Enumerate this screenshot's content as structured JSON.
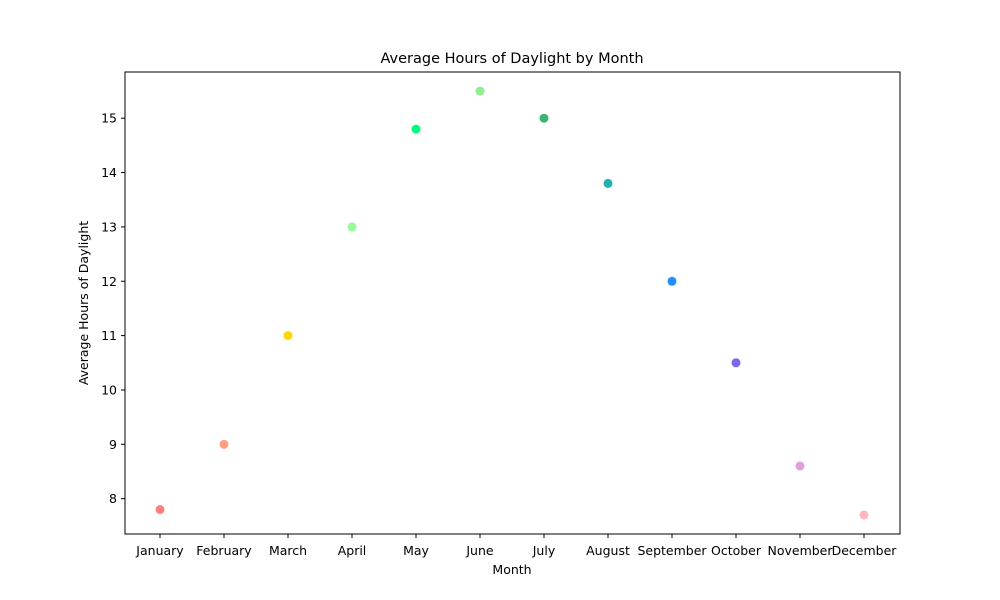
{
  "chart_data": {
    "type": "scatter",
    "title": "Average Hours of Daylight by Month",
    "xlabel": "Month",
    "ylabel": "Average Hours of Daylight",
    "categories": [
      "January",
      "February",
      "March",
      "April",
      "May",
      "June",
      "July",
      "August",
      "September",
      "October",
      "November",
      "December"
    ],
    "values": [
      7.8,
      9.0,
      11.0,
      13.0,
      14.8,
      15.5,
      15.0,
      13.8,
      12.0,
      10.5,
      8.6,
      7.7
    ],
    "colors": [
      "#ff7f7f",
      "#ff9f7f",
      "#ffd700",
      "#98fb98",
      "#00ff7f",
      "#90ee90",
      "#3cb371",
      "#20b2aa",
      "#1e90ff",
      "#7b68ee",
      "#dda0dd",
      "#ffb6c1"
    ],
    "ylim": [
      7.35,
      15.85
    ],
    "yticks": [
      8,
      9,
      10,
      11,
      12,
      13,
      14,
      15
    ],
    "grid": false,
    "legend": "none"
  }
}
